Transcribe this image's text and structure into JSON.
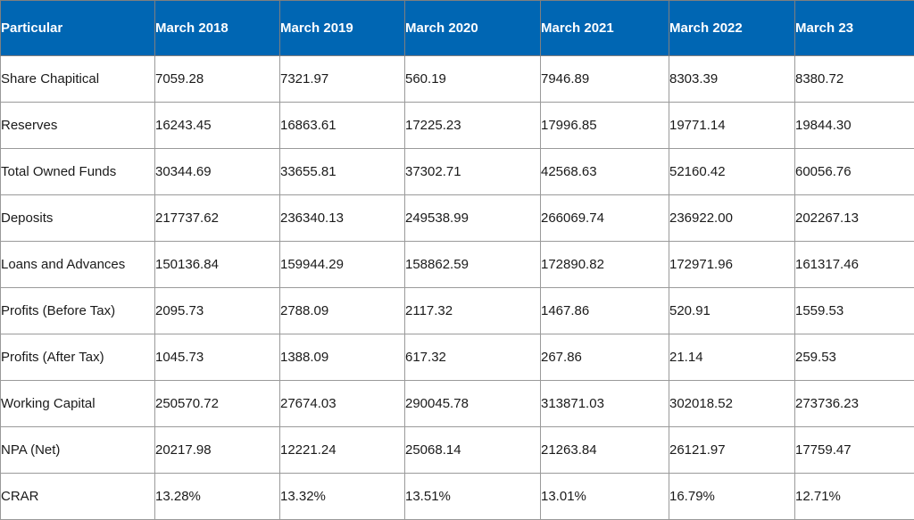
{
  "table": {
    "headers": [
      "Particular",
      "March 2018",
      "March 2019",
      "March 2020",
      "March 2021",
      "March 2022",
      "March 23"
    ],
    "rows": [
      [
        "Share Chapitical",
        "7059.28",
        "7321.97",
        "560.19",
        "7946.89",
        "8303.39",
        "8380.72"
      ],
      [
        "Reserves",
        "16243.45",
        "16863.61",
        "17225.23",
        "17996.85",
        "19771.14",
        "19844.30"
      ],
      [
        "Total Owned Funds",
        "30344.69",
        "33655.81",
        "37302.71",
        "42568.63",
        "52160.42",
        "60056.76"
      ],
      [
        "Deposits",
        "217737.62",
        "236340.13",
        "249538.99",
        "266069.74",
        "236922.00",
        "202267.13"
      ],
      [
        "Loans and Advances",
        "150136.84",
        "159944.29",
        "158862.59",
        "172890.82",
        "172971.96",
        "161317.46"
      ],
      [
        "Profits (Before Tax)",
        "2095.73",
        "2788.09",
        "2117.32",
        "1467.86",
        "520.91",
        "1559.53"
      ],
      [
        "Profits (After Tax)",
        "1045.73",
        "1388.09",
        "617.32",
        "267.86",
        "21.14",
        "259.53"
      ],
      [
        "Working Capital",
        "250570.72",
        "27674.03",
        "290045.78",
        "313871.03",
        "302018.52",
        "273736.23"
      ],
      [
        "NPA (Net)",
        "20217.98",
        "12221.24",
        "25068.14",
        "21263.84",
        "26121.97",
        "17759.47"
      ],
      [
        "CRAR",
        "13.28%",
        "13.32%",
        "13.51%",
        "13.01%",
        "16.79%",
        "12.71%"
      ]
    ]
  },
  "colors": {
    "header_bg": "#0066b3",
    "header_text": "#ffffff",
    "border": "#9a9a9a",
    "body_text": "#1a1a1a"
  }
}
